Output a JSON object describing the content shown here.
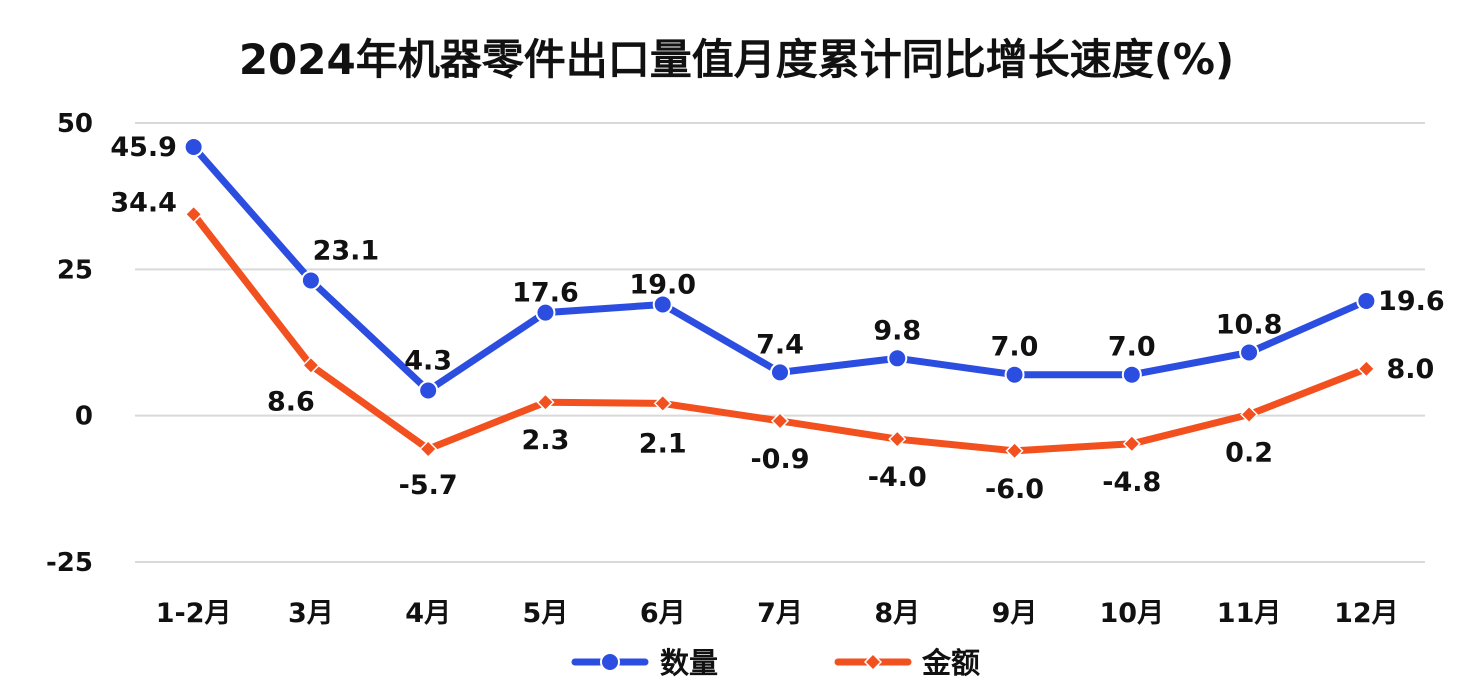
{
  "chart_data": {
    "type": "line",
    "title": "2024年机器零件出口量值月度累计同比增长速度(%)",
    "categories": [
      "1-2月",
      "3月",
      "4月",
      "5月",
      "6月",
      "7月",
      "8月",
      "9月",
      "10月",
      "11月",
      "12月"
    ],
    "ylim": [
      -25,
      50
    ],
    "yticks": [
      50,
      25,
      0,
      -25
    ],
    "grid": true,
    "legend_position": "bottom",
    "series": [
      {
        "name": "数量",
        "color": "#2b4de0",
        "marker": "circle",
        "values": [
          45.9,
          23.1,
          4.3,
          17.6,
          19.0,
          7.4,
          9.8,
          7.0,
          7.0,
          10.8,
          19.6
        ],
        "labels": [
          "45.9",
          "23.1",
          "4.3",
          "17.6",
          "19.0",
          "7.4",
          "9.8",
          "7.0",
          "7.0",
          "10.8",
          "19.6"
        ]
      },
      {
        "name": "金额",
        "color": "#f2501e",
        "marker": "diamond",
        "values": [
          34.4,
          8.6,
          -5.7,
          2.3,
          2.1,
          -0.9,
          -4.0,
          -6.0,
          -4.8,
          0.2,
          8.0
        ],
        "labels": [
          "34.4",
          "8.6",
          "-5.7",
          "2.3",
          "2.1",
          "-0.9",
          "-4.0",
          "-6.0",
          "-4.8",
          "0.2",
          "8.0"
        ]
      }
    ]
  }
}
